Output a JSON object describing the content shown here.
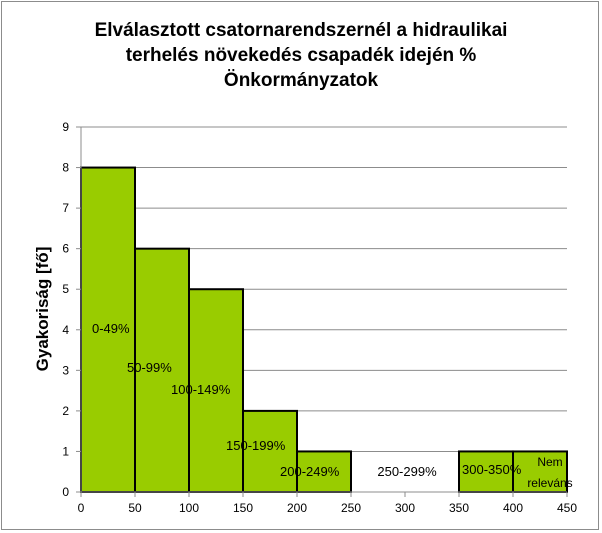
{
  "chart_data": {
    "type": "bar",
    "title_lines": [
      "Elválasztott csatornarendszernél a hidraulikai",
      "terhelés növekedés csapadék idején %",
      "Önkormányzatok"
    ],
    "xlabel": "",
    "ylabel": "Gyakoriság [fő]",
    "xlim": [
      0,
      450
    ],
    "ylim": [
      0,
      9
    ],
    "x_ticks": [
      0,
      50,
      100,
      150,
      200,
      250,
      300,
      350,
      400,
      450
    ],
    "y_ticks": [
      0,
      1,
      2,
      3,
      4,
      5,
      6,
      7,
      8,
      9
    ],
    "bins": [
      {
        "start": 0,
        "end": 50,
        "value": 8,
        "label": [
          "0-49%"
        ]
      },
      {
        "start": 50,
        "end": 100,
        "value": 6,
        "label": [
          "50-99%"
        ]
      },
      {
        "start": 100,
        "end": 150,
        "value": 5,
        "label": [
          "100-149%"
        ]
      },
      {
        "start": 150,
        "end": 200,
        "value": 2,
        "label": [
          "150-199%"
        ]
      },
      {
        "start": 200,
        "end": 250,
        "value": 1,
        "label": [
          "200-249%"
        ]
      },
      {
        "start": 250,
        "end": 350,
        "value": 0,
        "label": [
          "250-299%"
        ]
      },
      {
        "start": 350,
        "end": 400,
        "value": 1,
        "label": [
          "300-350%"
        ]
      },
      {
        "start": 400,
        "end": 450,
        "value": 1,
        "label": [
          "Nem",
          "releváns"
        ]
      }
    ],
    "grid": "horizontal",
    "legend": "none",
    "colors": {
      "bar_fill": "#99cc00",
      "bar_stroke": "#000000",
      "grid": "#8c8c8c"
    }
  }
}
